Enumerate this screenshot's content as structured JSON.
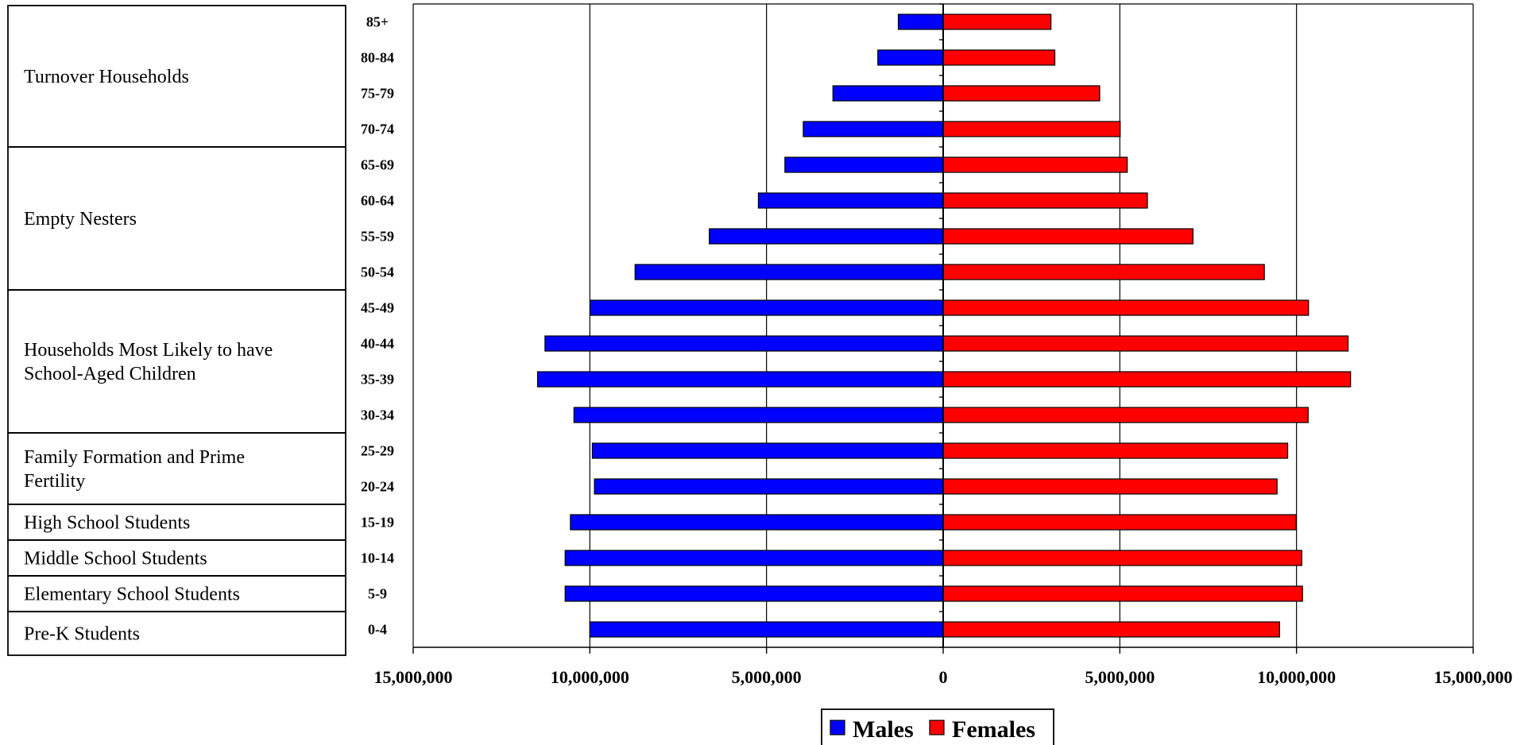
{
  "chart_data": {
    "type": "bar",
    "orientation": "horizontal",
    "layout": "population-pyramid",
    "categories": [
      "0-4",
      "5-9",
      "10-14",
      "15-19",
      "20-24",
      "25-29",
      "30-34",
      "35-39",
      "40-44",
      "45-49",
      "50-54",
      "55-59",
      "60-64",
      "65-69",
      "70-74",
      "75-79",
      "80-84",
      "85+"
    ],
    "series": [
      {
        "name": "Males",
        "color": "#0000FF",
        "values": [
          10000000,
          10700000,
          10700000,
          10550000,
          9870000,
          9930000,
          10450000,
          11480000,
          11270000,
          9990000,
          8720000,
          6620000,
          5230000,
          4480000,
          3960000,
          3120000,
          1850000,
          1270000
        ]
      },
      {
        "name": "Females",
        "color": "#FF0000",
        "values": [
          9520000,
          10170000,
          10150000,
          9990000,
          9450000,
          9750000,
          10330000,
          11530000,
          11460000,
          10340000,
          9090000,
          7070000,
          5780000,
          5210000,
          5010000,
          4430000,
          3160000,
          3050000
        ]
      }
    ],
    "xlim": [
      -15000000,
      15000000
    ],
    "xticks": [
      -15000000,
      -10000000,
      -5000000,
      0,
      5000000,
      10000000,
      15000000
    ],
    "xtick_labels": [
      "15,000,000",
      "10,000,000",
      "5,000,000",
      "0",
      "5,000,000",
      "10,000,000",
      "15,000,000"
    ],
    "grid": "vertical",
    "legend_placement": "bottom-center",
    "title": "",
    "xlabel": "",
    "ylabel": "",
    "life_stages": [
      {
        "label_lines": [
          "Turnover Households"
        ],
        "categories": [
          "70-74",
          "75-79",
          "80-84",
          "85+"
        ]
      },
      {
        "label_lines": [
          "Empty Nesters"
        ],
        "categories": [
          "50-54",
          "55-59",
          "60-64",
          "65-69"
        ]
      },
      {
        "label_lines": [
          "Households Most Likely to have",
          "School-Aged Children"
        ],
        "categories": [
          "30-34",
          "35-39",
          "40-44",
          "45-49"
        ]
      },
      {
        "label_lines": [
          "Family Formation and Prime",
          "Fertility"
        ],
        "categories": [
          "20-24",
          "25-29"
        ]
      },
      {
        "label_lines": [
          "High School Students"
        ],
        "categories": [
          "15-19"
        ]
      },
      {
        "label_lines": [
          "Middle School Students"
        ],
        "categories": [
          "10-14"
        ]
      },
      {
        "label_lines": [
          "Elementary School Students"
        ],
        "categories": [
          "5-9"
        ]
      },
      {
        "label_lines": [
          "Pre-K Students"
        ],
        "categories": [
          "0-4"
        ]
      }
    ]
  }
}
